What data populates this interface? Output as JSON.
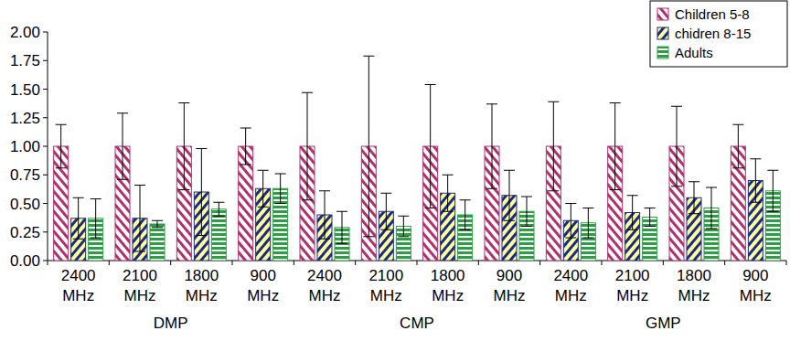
{
  "chart_data": {
    "type": "bar",
    "categories": [
      "2400 MHz",
      "2100 MHz",
      "1800 MHz",
      "900 MHz",
      "2400 MHz",
      "2100 MHz",
      "1800 MHz",
      "900 MHz",
      "2400 MHz",
      "2100 MHz",
      "1800 MHz",
      "900 MHz"
    ],
    "groups": [
      "DMP",
      "CMP",
      "GMP"
    ],
    "series": [
      {
        "name": "Children 5-8",
        "color": "#b0306e",
        "values": [
          1.0,
          1.0,
          1.0,
          1.0,
          1.0,
          1.0,
          1.0,
          1.0,
          1.0,
          1.0,
          1.0,
          1.0
        ],
        "errors": [
          0.19,
          0.29,
          0.38,
          0.16,
          0.47,
          0.79,
          0.54,
          0.37,
          0.39,
          0.38,
          0.35,
          0.19
        ]
      },
      {
        "name": "chidren 8-15",
        "color": "#1c2a84",
        "values": [
          0.37,
          0.37,
          0.6,
          0.63,
          0.4,
          0.43,
          0.59,
          0.57,
          0.35,
          0.42,
          0.55,
          0.7
        ],
        "errors": [
          0.18,
          0.29,
          0.38,
          0.16,
          0.21,
          0.16,
          0.16,
          0.22,
          0.15,
          0.15,
          0.14,
          0.19
        ]
      },
      {
        "name": "Adults",
        "color": "#2e9e44",
        "values": [
          0.37,
          0.32,
          0.45,
          0.63,
          0.29,
          0.3,
          0.4,
          0.43,
          0.33,
          0.38,
          0.46,
          0.61
        ],
        "errors": [
          0.17,
          0.03,
          0.06,
          0.13,
          0.14,
          0.09,
          0.13,
          0.13,
          0.13,
          0.08,
          0.18,
          0.18
        ]
      }
    ],
    "ylim": [
      0,
      2
    ],
    "yticks": [
      {
        "value": 0,
        "label": "0.00"
      },
      {
        "value": 0.25,
        "label": "0.25"
      },
      {
        "value": 0.5,
        "label": "0.50"
      },
      {
        "value": 0.75,
        "label": "0.75"
      },
      {
        "value": 1,
        "label": "1.00"
      },
      {
        "value": 1.25,
        "label": "1.25"
      },
      {
        "value": 1.5,
        "label": "1.50"
      },
      {
        "value": 1.75,
        "label": "1.75"
      },
      {
        "value": 2,
        "label": "2.00"
      }
    ],
    "grid": false,
    "legend": "top-right"
  }
}
